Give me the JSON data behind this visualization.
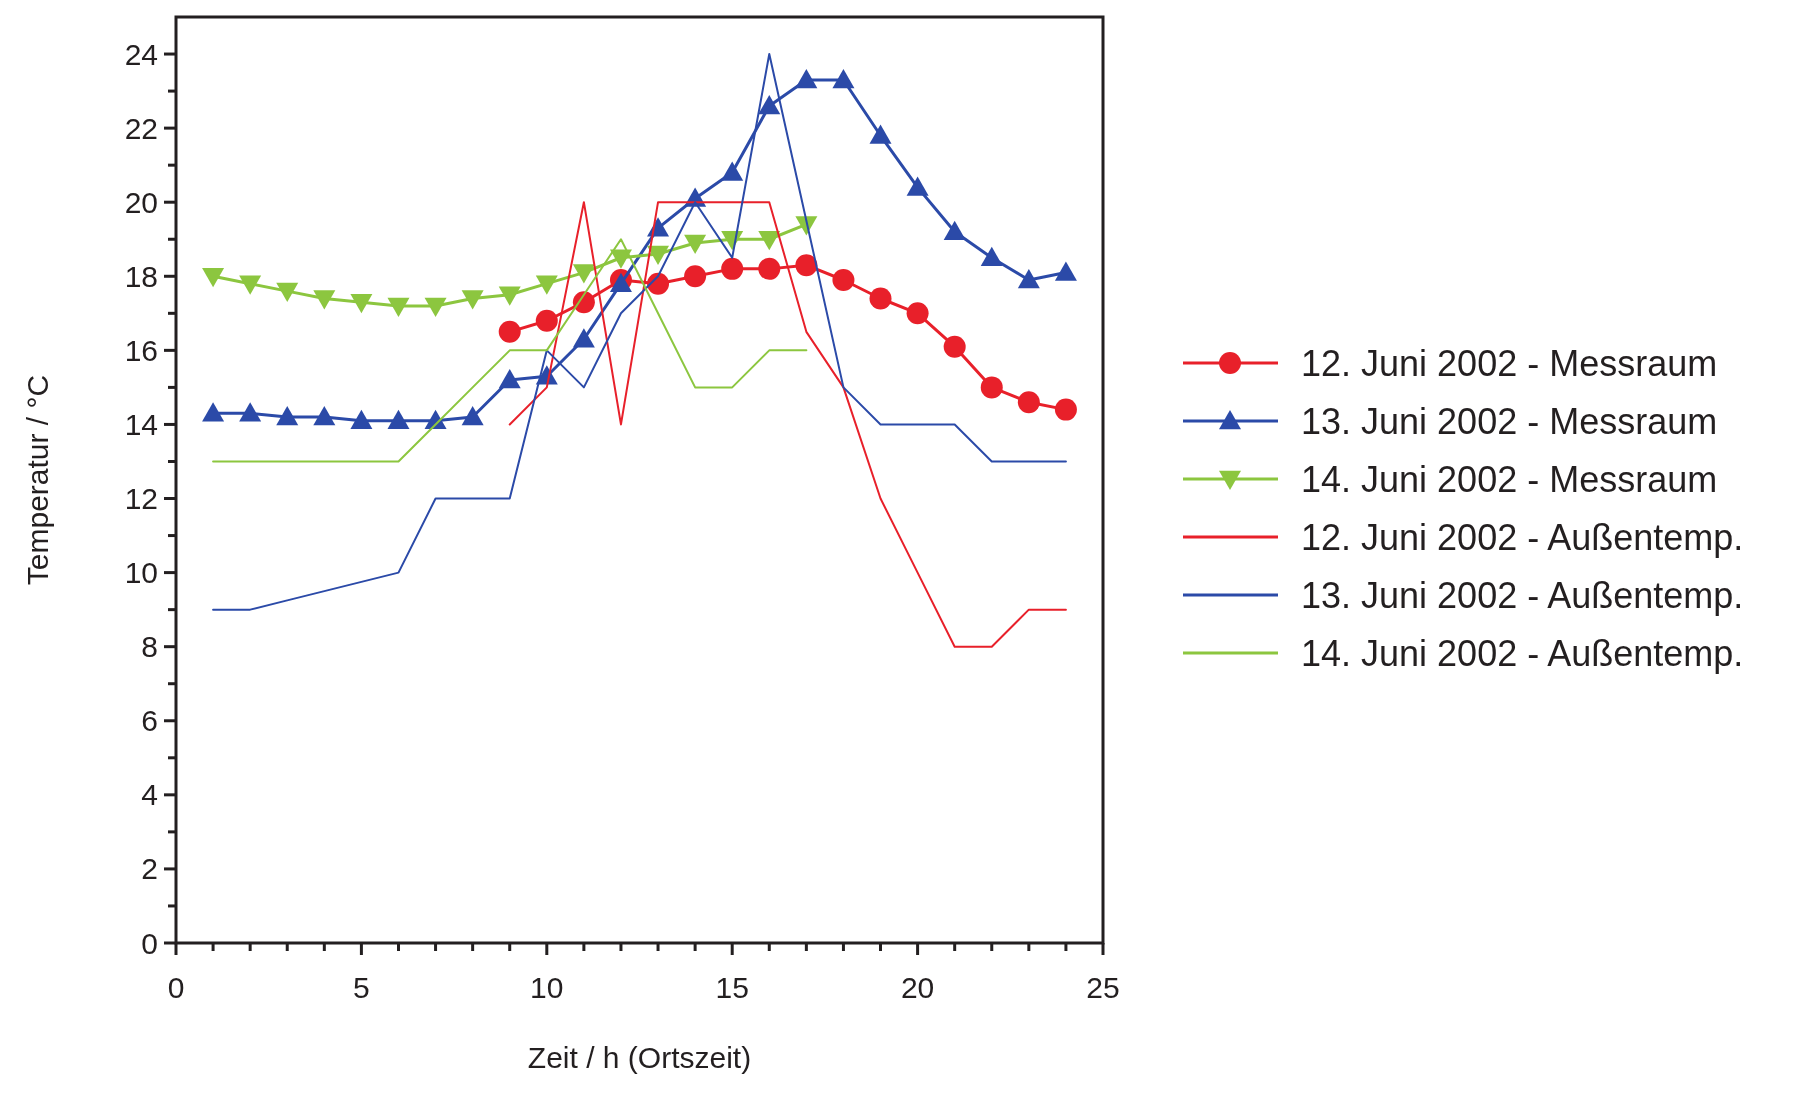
{
  "chart_data": {
    "type": "line",
    "xlabel": "Zeit / h (Ortszeit)",
    "ylabel": "Temperatur / °C",
    "xlim": [
      0,
      25
    ],
    "ylim": [
      0,
      25
    ],
    "xticks": [
      0,
      {
        "value": 1,
        "label": null
      },
      {
        "value": 2,
        "label": null
      },
      {
        "value": 3,
        "label": null
      },
      {
        "value": 4,
        "label": null
      },
      5,
      {
        "value": 6,
        "label": null
      },
      {
        "value": 7,
        "label": null
      },
      {
        "value": 8,
        "label": null
      },
      {
        "value": 9,
        "label": null
      },
      10,
      {
        "value": 11,
        "label": null
      },
      {
        "value": 12,
        "label": null
      },
      {
        "value": 13,
        "label": null
      },
      {
        "value": 14,
        "label": null
      },
      15,
      {
        "value": 16,
        "label": null
      },
      {
        "value": 17,
        "label": null
      },
      {
        "value": 18,
        "label": null
      },
      {
        "value": 19,
        "label": null
      },
      20,
      {
        "value": 21,
        "label": null
      },
      {
        "value": 22,
        "label": null
      },
      {
        "value": 23,
        "label": null
      },
      {
        "value": 24,
        "label": null
      },
      25
    ],
    "yticks": [
      0,
      {
        "value": 1,
        "label": null
      },
      2,
      {
        "value": 3,
        "label": null
      },
      4,
      {
        "value": 5,
        "label": null
      },
      6,
      {
        "value": 7,
        "label": null
      },
      8,
      {
        "value": 9,
        "label": null
      },
      10,
      {
        "value": 11,
        "label": null
      },
      12,
      {
        "value": 13,
        "label": null
      },
      14,
      {
        "value": 15,
        "label": null
      },
      16,
      {
        "value": 17,
        "label": null
      },
      18,
      {
        "value": 19,
        "label": null
      },
      20,
      {
        "value": 21,
        "label": null
      },
      22,
      {
        "value": 23,
        "label": null
      },
      24
    ],
    "grid": false,
    "legend": "right",
    "series": [
      {
        "name": "12. Juni 2002 - Messraum",
        "color": "#e8202a",
        "marker": "circle",
        "x": [
          9,
          10,
          11,
          12,
          13,
          14,
          15,
          16,
          17,
          18,
          19,
          20,
          21,
          22,
          23,
          24
        ],
        "values": [
          16.5,
          16.8,
          17.3,
          17.9,
          17.8,
          18.0,
          18.2,
          18.2,
          18.3,
          17.9,
          17.4,
          17.0,
          16.1,
          15.0,
          14.6,
          14.4
        ]
      },
      {
        "name": "13. Juni 2002 - Messraum",
        "color": "#2b4aa8",
        "marker": "triangle",
        "x": [
          1,
          2,
          3,
          4,
          5,
          6,
          7,
          8,
          9,
          10,
          11,
          12,
          13,
          14,
          15,
          16,
          17,
          18,
          19,
          20,
          21,
          22,
          23,
          24
        ],
        "values": [
          14.3,
          14.3,
          14.2,
          14.2,
          14.1,
          14.1,
          14.1,
          14.2,
          15.2,
          15.3,
          16.3,
          17.8,
          19.3,
          20.1,
          20.8,
          22.6,
          23.3,
          23.3,
          21.8,
          20.4,
          19.2,
          18.5,
          17.9,
          18.1
        ]
      },
      {
        "name": "14. Juni 2002 - Messraum",
        "color": "#8cc63f",
        "marker": "triangle-down",
        "x": [
          1,
          2,
          3,
          4,
          5,
          6,
          7,
          8,
          9,
          10,
          11,
          12,
          13,
          14,
          15,
          16,
          17
        ],
        "values": [
          18.0,
          17.8,
          17.6,
          17.4,
          17.3,
          17.2,
          17.2,
          17.4,
          17.5,
          17.8,
          18.1,
          18.5,
          18.6,
          18.9,
          19.0,
          19.0,
          19.4
        ]
      },
      {
        "name": "12. Juni 2002 - Außentemp.",
        "color": "#e8202a",
        "marker": "none",
        "x": [
          9,
          10,
          11,
          12,
          13,
          14,
          15,
          16,
          17,
          18,
          19,
          20,
          21,
          22,
          23,
          24
        ],
        "values": [
          14,
          15,
          20,
          14,
          20,
          20,
          20,
          20,
          16.5,
          15,
          12,
          10,
          8,
          8,
          9,
          9
        ]
      },
      {
        "name": "13. Juni 2002 - Außentemp.",
        "color": "#2b4aa8",
        "marker": "none",
        "x": [
          1,
          2,
          3,
          4,
          5,
          6,
          7,
          8,
          9,
          10,
          11,
          12,
          13,
          14,
          15,
          16,
          17,
          18,
          19,
          20,
          21,
          22,
          23,
          24
        ],
        "values": [
          9,
          9,
          9.25,
          9.5,
          9.75,
          10,
          12,
          12,
          12,
          16,
          15,
          17,
          18,
          20,
          18.5,
          24,
          19.5,
          15,
          14,
          14,
          14,
          13,
          13,
          13
        ]
      },
      {
        "name": "14. Juni 2002 - Außentemp.",
        "color": "#8cc63f",
        "marker": "none",
        "x": [
          1,
          2,
          3,
          4,
          5,
          6,
          7,
          8,
          9,
          10,
          11,
          12,
          13,
          14,
          15,
          16,
          17
        ],
        "values": [
          13,
          13,
          13,
          13,
          13,
          13,
          14,
          15,
          16,
          16,
          17.5,
          19,
          17,
          15,
          15,
          16,
          16
        ]
      }
    ]
  }
}
